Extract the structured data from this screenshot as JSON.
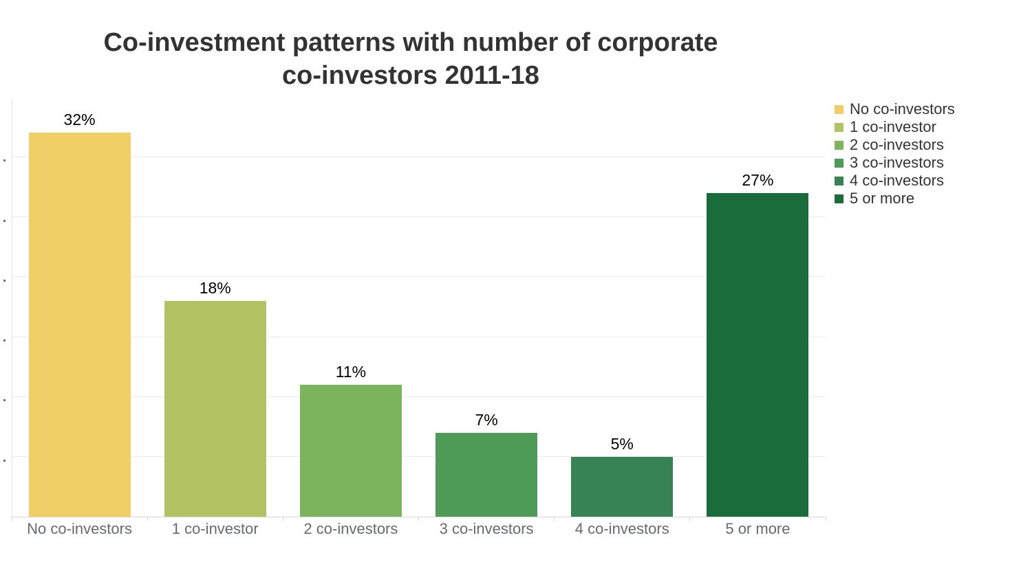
{
  "chart_data": {
    "type": "bar",
    "title": "Co-investment patterns with number of corporate co-investors 2011-18",
    "title_lines": [
      "Co-investment patterns with number of corporate",
      "co-investors 2011-18"
    ],
    "categories": [
      "No co-investors",
      "1 co-investor",
      "2 co-investors",
      "3 co-investors",
      "4 co-investors",
      "5 or more"
    ],
    "values": [
      32,
      18,
      11,
      7,
      5,
      27
    ],
    "value_labels": [
      "32%",
      "18%",
      "11%",
      "7%",
      "5%",
      "27%"
    ],
    "colors": [
      "#F0D066",
      "#B3C263",
      "#7CB45D",
      "#4E9B58",
      "#388355",
      "#1A6C3A"
    ],
    "legend": {
      "position": "right",
      "items": [
        {
          "label": "No co-investors",
          "color": "#F0D066"
        },
        {
          "label": "1 co-investor",
          "color": "#B3C263"
        },
        {
          "label": "2 co-investors",
          "color": "#7CB45D"
        },
        {
          "label": "3 co-investors",
          "color": "#4E9B58"
        },
        {
          "label": "4 co-investors",
          "color": "#388355"
        },
        {
          "label": "5 or more",
          "color": "#1A6C3A"
        }
      ]
    },
    "xlabel": "",
    "ylabel": "",
    "yaxis": {
      "min": 0,
      "max": 35,
      "grid_step": 5,
      "unit": "%",
      "tick_labels_visible": false
    },
    "grid": "on"
  },
  "style_colors": {
    "background": "#ffffff",
    "grid": "#ebebeb",
    "x_axis": "#d4d4d4",
    "y_axis": "#e3e3e3",
    "title_text": "#333333",
    "value_label_text": "#000000",
    "category_label_text": "#66696d",
    "legend_text": "#333333"
  }
}
